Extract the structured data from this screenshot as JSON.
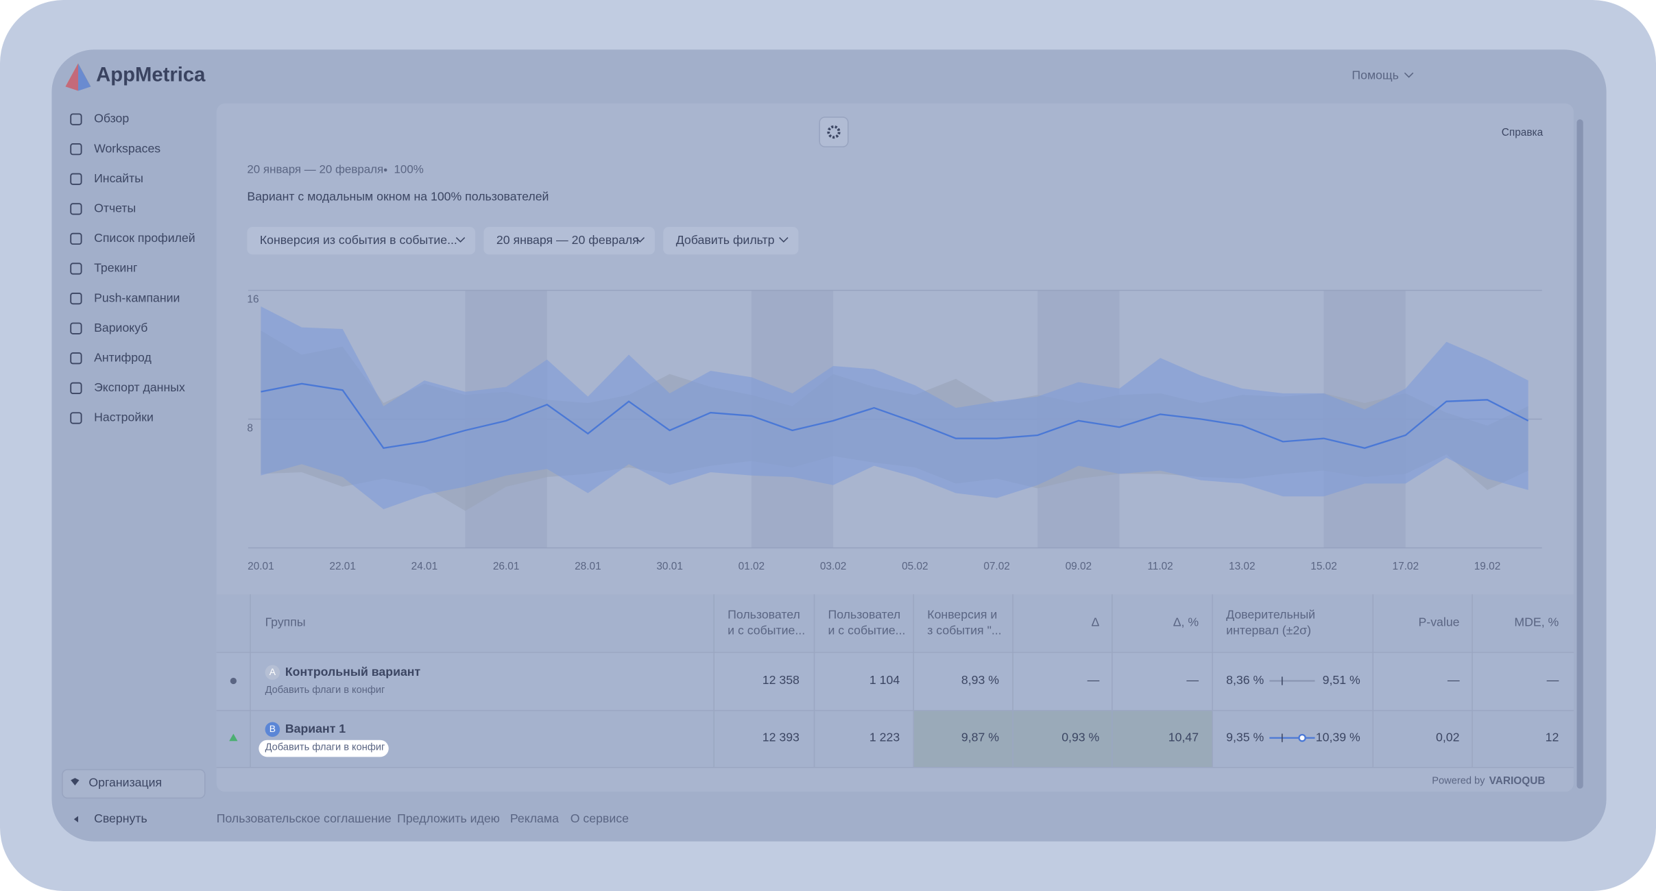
{
  "header": {
    "logo": "AppMetrica",
    "help": "Помощь"
  },
  "sidebar": {
    "items": [
      "Обзор",
      "Workspaces",
      "Инсайты",
      "Отчеты",
      "Список профилей",
      "Трекинг",
      "Push-кампании",
      "Вариокуб",
      "Антифрод",
      "Экспорт данных",
      "Настройки"
    ],
    "organization": "Организация",
    "collapse": "Свернуть"
  },
  "report": {
    "help": "Справка",
    "period": "20 января — 20 февраля",
    "share": "100%",
    "description": "Вариант с модальным окном на 100% пользователей",
    "filters": [
      "Конверсия из события в событие...",
      "20 января — 20 февраля",
      "Добавить фильтр"
    ]
  },
  "chart_data": {
    "type": "line",
    "categories": [
      "20.01",
      null,
      "22.01",
      null,
      "24.01",
      null,
      "26.01",
      null,
      "28.01",
      null,
      "30.01",
      null,
      "01.02",
      null,
      "03.02",
      null,
      "05.02",
      null,
      "07.02",
      null,
      "09.02",
      null,
      "11.02",
      null,
      "13.02",
      null,
      "15.02",
      null,
      "17.02",
      null,
      "19.02",
      null
    ],
    "ylim": [
      0,
      16
    ],
    "yticks": [
      8,
      16
    ],
    "grid": true,
    "series": [
      {
        "color": "#4a78d6",
        "values": [
          9.7,
          10.2,
          9.8,
          6.2,
          6.6,
          7.3,
          7.9,
          8.9,
          7.1,
          9.1,
          7.3,
          8.4,
          8.2,
          7.3,
          7.9,
          8.7,
          7.8,
          6.8,
          6.8,
          7.0,
          7.9,
          7.5,
          8.3,
          8.0,
          7.6,
          6.6,
          6.8,
          6.2,
          7.0,
          9.1,
          9.2,
          7.9
        ]
      }
    ],
    "bands": [
      {
        "color": "#9aa3b8",
        "upper": [
          13.5,
          12,
          12.5,
          9.0,
          10.2,
          9.5,
          9.7,
          9.2,
          9.0,
          9.5,
          10.8,
          10.0,
          9.5,
          8.8,
          10.8,
          10.0,
          9.5,
          10.5,
          9.0,
          9.5,
          9.0,
          9.5,
          9.6,
          9.0,
          9.5,
          9.4,
          9.6,
          9.0,
          9.6,
          8.4,
          7.6,
          8.8
        ],
        "lower": [
          4.6,
          4.7,
          3.8,
          4.3,
          3.8,
          2.3,
          3.8,
          4.4,
          4.6,
          5.0,
          4.6,
          5.1,
          5.4,
          5.0,
          5.7,
          5.3,
          5.0,
          4.0,
          4.3,
          3.7,
          4.3,
          4.6,
          4.6,
          4.4,
          4.3,
          4.6,
          4.8,
          4.4,
          4.6,
          5.8,
          3.6,
          4.8
        ]
      },
      {
        "color": "#7e9bd9",
        "upper": [
          15,
          13.7,
          13.6,
          8.8,
          10.4,
          9.7,
          10,
          11.7,
          9.4,
          12.0,
          9.6,
          11.0,
          10.6,
          9.6,
          11.3,
          11.1,
          10.1,
          8.7,
          9.1,
          9.4,
          10.3,
          9.9,
          11.8,
          10.7,
          9.9,
          9.6,
          9.6,
          8.6,
          9.9,
          12.8,
          11.7,
          10.4
        ],
        "lower": [
          4.5,
          5.2,
          4.4,
          2.4,
          3.3,
          3.8,
          4.5,
          4.9,
          3.4,
          5.2,
          3.9,
          4.7,
          4.5,
          4.4,
          3.9,
          5.1,
          4.4,
          3.4,
          3.1,
          3.9,
          5.1,
          4.6,
          4.8,
          4.2,
          4.0,
          3.2,
          3.2,
          4.0,
          4.0,
          5.6,
          4.3,
          3.6
        ]
      }
    ]
  },
  "table": {
    "headers": [
      "Группы",
      [
        "Пользовател",
        "и с событие..."
      ],
      [
        "Пользовател",
        "и с событие..."
      ],
      [
        "Конверсия и",
        "з события \"..."
      ],
      "Δ",
      "Δ, %",
      [
        "Доверительный",
        "интервал (±2σ)"
      ],
      "P-value",
      "MDE, %"
    ],
    "rows": [
      {
        "badge": "A",
        "name": "Контрольный вариант",
        "action": "Добавить флаги в конфиг",
        "cells": [
          "12 358",
          "1 104",
          "8,93 %",
          "—",
          "—",
          "8,36 %",
          "9,51 %",
          "—",
          "—"
        ]
      },
      {
        "badge": "B",
        "name": "Вариант 1",
        "action": "Добавить флаги в конфиг",
        "cells": [
          "12 393",
          "1 223",
          "9,87 %",
          "0,93 %",
          "10,47",
          "9,35 %",
          "10,39 %",
          "0,02",
          "12"
        ]
      }
    ]
  },
  "powered": {
    "text": "Powered by",
    "brand": "VARIOQUB"
  },
  "footer": {
    "links": [
      "Пользовательское соглашение",
      "Предложить идею",
      "Реклама",
      "О сервисе"
    ]
  }
}
